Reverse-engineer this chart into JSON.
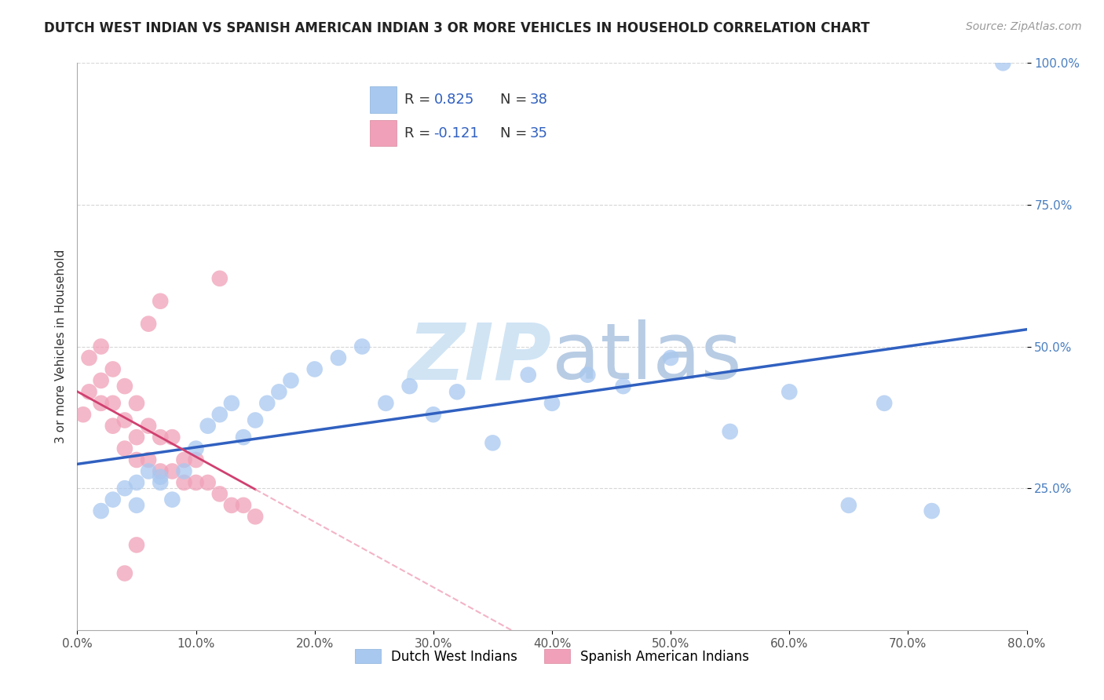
{
  "title": "DUTCH WEST INDIAN VS SPANISH AMERICAN INDIAN 3 OR MORE VEHICLES IN HOUSEHOLD CORRELATION CHART",
  "source": "Source: ZipAtlas.com",
  "ylabel": "3 or more Vehicles in Household",
  "xmin": 0.0,
  "xmax": 0.8,
  "ymin": 0.0,
  "ymax": 1.0,
  "blue_R": 0.825,
  "blue_N": 38,
  "pink_R": -0.121,
  "pink_N": 35,
  "legend_label_blue": "Dutch West Indians",
  "legend_label_pink": "Spanish American Indians",
  "blue_color": "#a8c8f0",
  "pink_color": "#f0a0b8",
  "blue_line_color": "#3060c0",
  "pink_line_color": "#d04070",
  "pink_line_dashed_color": "#f0a0b8",
  "blue_scatter_x": [
    0.02,
    0.03,
    0.04,
    0.05,
    0.05,
    0.06,
    0.07,
    0.07,
    0.08,
    0.09,
    0.1,
    0.11,
    0.12,
    0.13,
    0.14,
    0.15,
    0.16,
    0.17,
    0.18,
    0.2,
    0.22,
    0.24,
    0.26,
    0.28,
    0.3,
    0.32,
    0.35,
    0.38,
    0.4,
    0.43,
    0.46,
    0.5,
    0.55,
    0.6,
    0.65,
    0.68,
    0.72,
    0.78
  ],
  "blue_scatter_y": [
    0.21,
    0.23,
    0.25,
    0.22,
    0.26,
    0.28,
    0.27,
    0.26,
    0.23,
    0.28,
    0.32,
    0.36,
    0.38,
    0.4,
    0.34,
    0.37,
    0.4,
    0.42,
    0.44,
    0.46,
    0.48,
    0.5,
    0.4,
    0.43,
    0.38,
    0.42,
    0.33,
    0.45,
    0.4,
    0.45,
    0.43,
    0.48,
    0.35,
    0.42,
    0.22,
    0.4,
    0.21,
    1.0
  ],
  "pink_scatter_x": [
    0.005,
    0.01,
    0.01,
    0.02,
    0.02,
    0.02,
    0.03,
    0.03,
    0.03,
    0.04,
    0.04,
    0.04,
    0.05,
    0.05,
    0.05,
    0.06,
    0.06,
    0.07,
    0.07,
    0.08,
    0.08,
    0.09,
    0.09,
    0.1,
    0.1,
    0.11,
    0.12,
    0.13,
    0.14,
    0.15,
    0.05,
    0.04,
    0.06,
    0.07,
    0.12
  ],
  "pink_scatter_y": [
    0.38,
    0.42,
    0.48,
    0.4,
    0.44,
    0.5,
    0.36,
    0.4,
    0.46,
    0.32,
    0.37,
    0.43,
    0.3,
    0.34,
    0.4,
    0.3,
    0.36,
    0.28,
    0.34,
    0.28,
    0.34,
    0.26,
    0.3,
    0.26,
    0.3,
    0.26,
    0.24,
    0.22,
    0.22,
    0.2,
    0.15,
    0.1,
    0.54,
    0.58,
    0.62
  ],
  "background_color": "#ffffff",
  "grid_color": "#cccccc",
  "title_fontsize": 12,
  "axis_label_fontsize": 11,
  "tick_fontsize": 11,
  "watermark_color": "#d0e4f4",
  "watermark_fontsize": 72
}
